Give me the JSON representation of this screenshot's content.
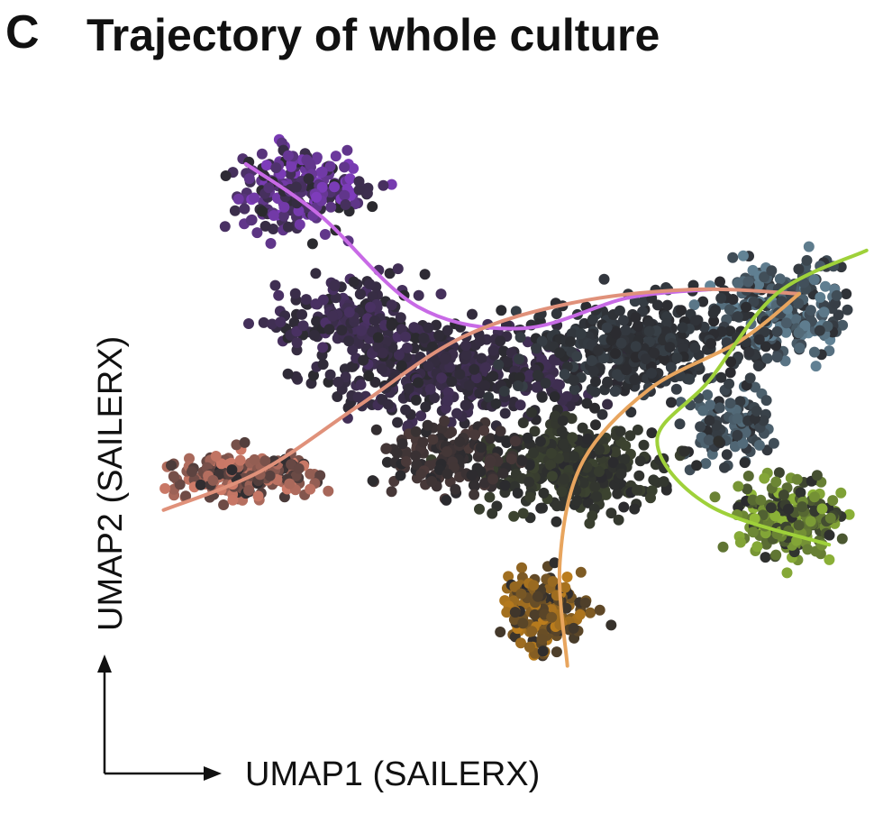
{
  "panel_label": "C",
  "chart_data": {
    "type": "scatter",
    "title": "Trajectory of whole culture",
    "xlabel": "UMAP1 (SAILERX)",
    "ylabel": "UMAP2 (SAILERX)",
    "grid": false,
    "legend": "none",
    "colors": {
      "background_cells": "#2a2a2e",
      "purple": "#8a3fd0",
      "salmon": "#d9806c",
      "orange": "#d18a1a",
      "lime": "#a6d63a",
      "steelblue": "#6f97ad"
    },
    "trajectories": [
      {
        "color": "#c86ae6",
        "points": [
          [
            1.6,
            9.4
          ],
          [
            2.6,
            8.2
          ],
          [
            3.9,
            6.1
          ],
          [
            5.3,
            5.6
          ],
          [
            6.7,
            6.3
          ],
          [
            7.8,
            6.5
          ]
        ]
      },
      {
        "color": "#e0917a",
        "points": [
          [
            0.5,
            1.4
          ],
          [
            1.8,
            2.3
          ],
          [
            3.1,
            3.8
          ],
          [
            4.5,
            5.4
          ],
          [
            6.0,
            6.2
          ],
          [
            7.6,
            6.5
          ],
          [
            9.0,
            6.4
          ]
        ]
      },
      {
        "color": "#e8a55e",
        "points": [
          [
            5.9,
            -2.2
          ],
          [
            5.8,
            0.2
          ],
          [
            6.1,
            2.5
          ],
          [
            7.0,
            4.2
          ],
          [
            8.2,
            5.3
          ],
          [
            9.0,
            6.4
          ]
        ]
      },
      {
        "color": "#9fd13a",
        "points": [
          [
            9.9,
            7.4
          ],
          [
            8.7,
            6.4
          ],
          [
            7.8,
            4.4
          ],
          [
            7.1,
            3.0
          ],
          [
            7.8,
            1.5
          ],
          [
            9.4,
            0.6
          ]
        ]
      }
    ]
  }
}
